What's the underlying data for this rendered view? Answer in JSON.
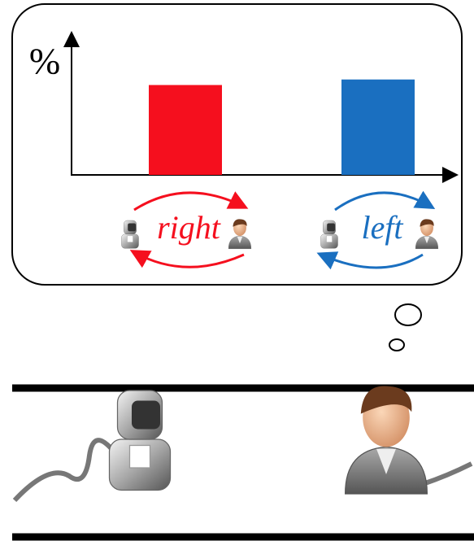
{
  "chart_data": {
    "type": "bar",
    "y_label": "%",
    "categories": [
      "right",
      "left"
    ],
    "values": [
      65,
      69
    ],
    "colors": [
      "#f50f1e",
      "#1a6fc0"
    ],
    "ylim": [
      0,
      100
    ]
  }
}
